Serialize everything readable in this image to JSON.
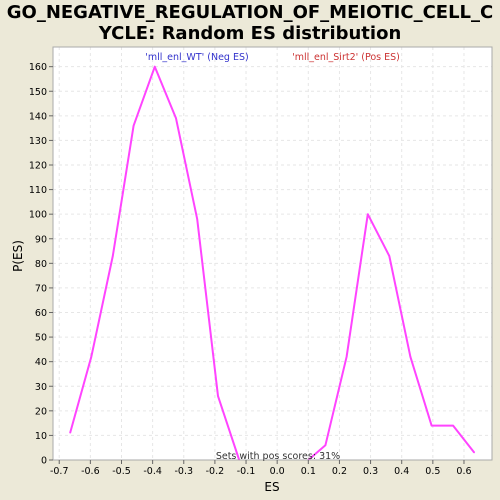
{
  "chart_data": {
    "type": "line",
    "title_lines": [
      "GO_NEGATIVE_REGULATION_OF_MEIOTIC_CELL_C",
      "YCLE: Random ES distribution"
    ],
    "xlabel": "ES",
    "ylabel": "P(ES)",
    "xlim": [
      -0.72,
      0.69
    ],
    "ylim": [
      0,
      168
    ],
    "x_ticks": [
      -0.7,
      -0.6,
      -0.5,
      -0.4,
      -0.3,
      -0.2,
      -0.1,
      0.0,
      0.1,
      0.2,
      0.3,
      0.4,
      0.5,
      0.6
    ],
    "x_tick_labels": [
      "-0.7",
      "-0.6",
      "-0.5",
      "-0.4",
      "-0.3",
      "-0.2",
      "-0.1",
      "0.0",
      "0.1",
      "0.2",
      "0.3",
      "0.4",
      "0.5",
      "0.6"
    ],
    "y_ticks": [
      0,
      10,
      20,
      30,
      40,
      50,
      60,
      70,
      80,
      90,
      100,
      110,
      120,
      130,
      140,
      150,
      160
    ],
    "y_tick_labels": [
      "0",
      "10",
      "20",
      "30",
      "40",
      "50",
      "60",
      "70",
      "80",
      "90",
      "100",
      "110",
      "120",
      "130",
      "140",
      "150",
      "160"
    ],
    "grid": true,
    "series": [
      {
        "name": "'mll_enl_WT' (Neg ES)",
        "color": "#ff44ff",
        "x": [
          -0.665,
          -0.597,
          -0.528,
          -0.461,
          -0.393,
          -0.325,
          -0.257,
          -0.19,
          -0.122
        ],
        "y": [
          11,
          42,
          83,
          136,
          160,
          139,
          98,
          26,
          0
        ]
      },
      {
        "name": "'mll_enl_Sirt2' (Pos ES)",
        "color": "#ff44ff",
        "x": [
          0.1,
          0.155,
          0.223,
          0.291,
          0.36,
          0.428,
          0.496,
          0.565,
          0.633
        ],
        "y": [
          0,
          6,
          42,
          100,
          83,
          42,
          14,
          14,
          3
        ]
      }
    ],
    "legend": [
      {
        "label": "'mll_enl_WT' (Neg ES)",
        "color": "#3333cc"
      },
      {
        "label": "'mll_enl_Sirt2' (Pos ES)",
        "color": "#cc3333"
      }
    ],
    "annotation": "Sets with pos scores: 31%",
    "background": "#ece9d8",
    "plot_background": "#ffffff",
    "line_color": "#ff44ff",
    "grid_color": "#e6e6e6"
  }
}
